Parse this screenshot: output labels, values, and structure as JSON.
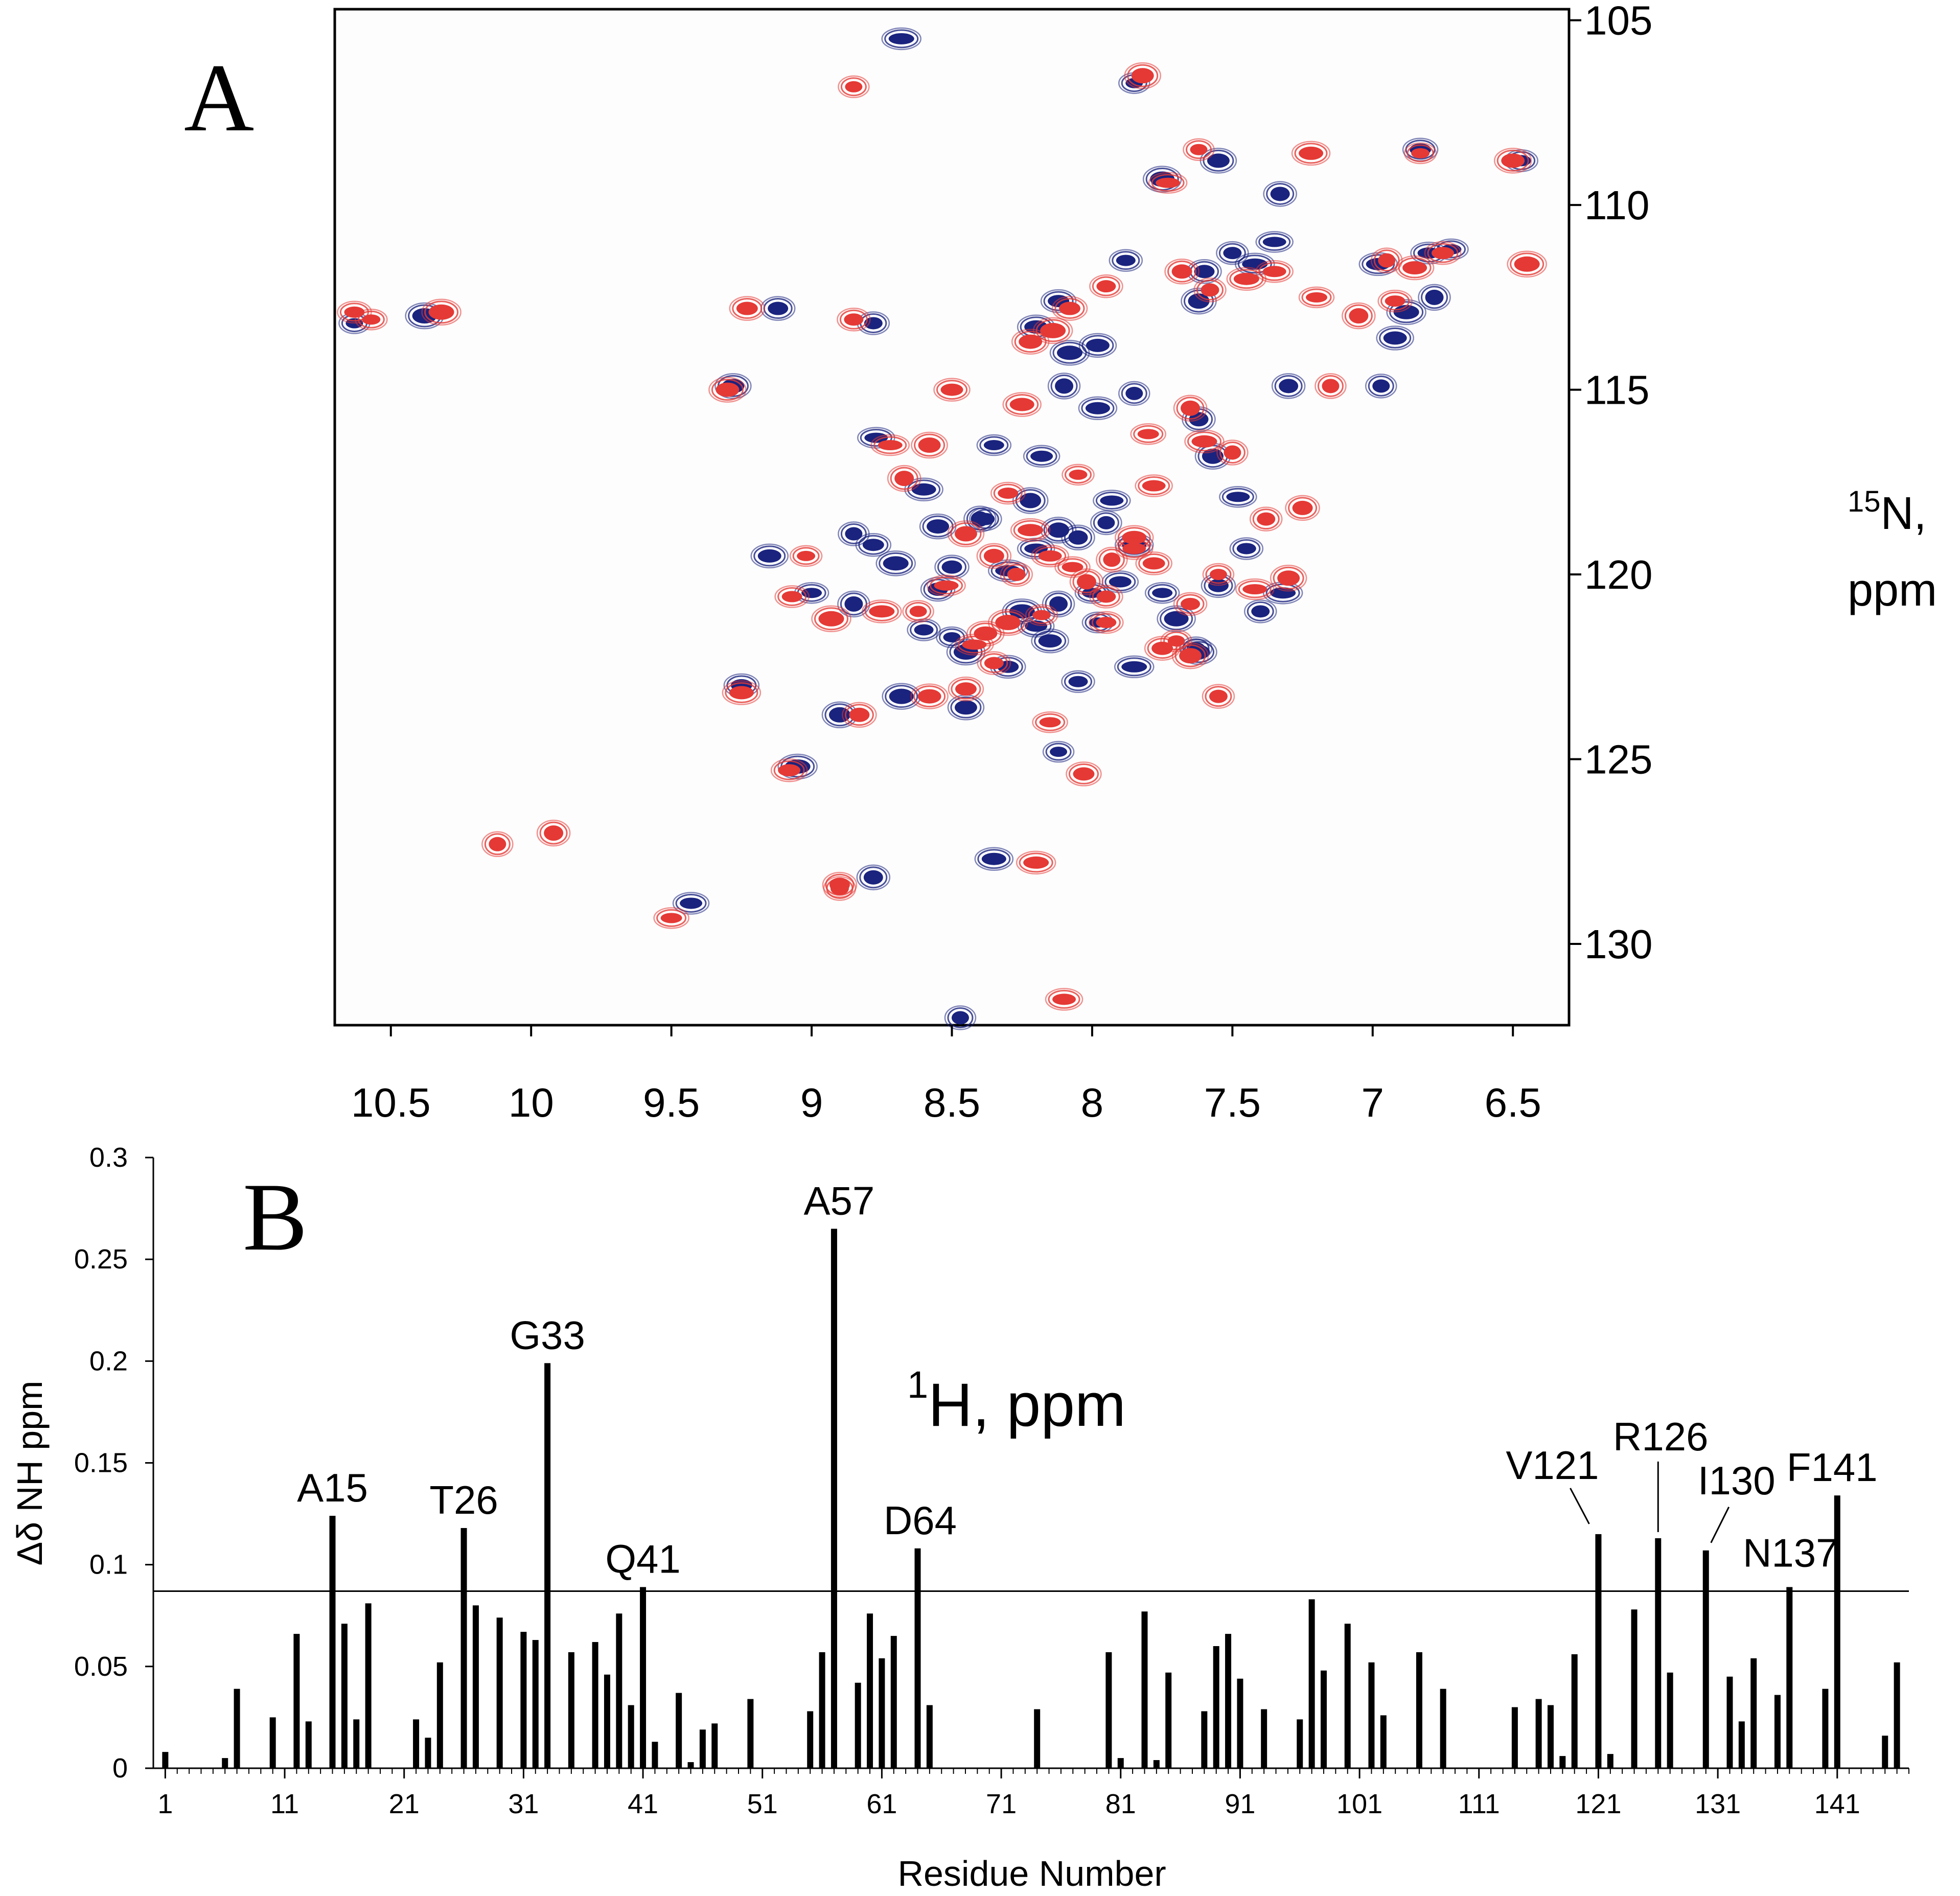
{
  "figure": {
    "panel_a_letter": "A",
    "panel_b_letter": "B"
  },
  "chart_data": [
    {
      "type": "scatter",
      "title": "",
      "xlabel_sup": "1",
      "xlabel": "H, ppm",
      "ylabel_sup": "15",
      "ylabel_line1": "N,",
      "ylabel_line2": "ppm",
      "xlim": [
        10.7,
        6.3
      ],
      "ylim": [
        132.2,
        104.7
      ],
      "x_ticks": [
        10.5,
        10,
        9.5,
        9,
        8.5,
        8,
        7.5,
        7,
        6.5
      ],
      "x_tick_labels": [
        "10.5",
        "10",
        "9.5",
        "9",
        "8.5",
        "8",
        "7.5",
        "7",
        "6.5"
      ],
      "y_ticks": [
        105,
        110,
        115,
        120,
        125,
        130
      ],
      "y_tick_labels": [
        "105",
        "110",
        "115",
        "120",
        "125",
        "130"
      ],
      "colors": {
        "blue": "#1a237e",
        "red": "#e53935"
      },
      "series": [
        {
          "name": "blue",
          "peaks": [
            [
              10.63,
              113.2
            ],
            [
              10.38,
              113.0
            ],
            [
              9.28,
              114.9
            ],
            [
              9.12,
              112.8
            ],
            [
              8.78,
              113.2
            ],
            [
              8.68,
              105.5
            ],
            [
              8.77,
              116.3
            ],
            [
              8.9,
              123.8
            ],
            [
              8.78,
              128.2
            ],
            [
              8.47,
              132.0
            ],
            [
              8.35,
              127.7
            ],
            [
              9.43,
              128.9
            ],
            [
              9.0,
              120.5
            ],
            [
              8.85,
              120.8
            ],
            [
              9.05,
              125.2
            ],
            [
              9.15,
              119.5
            ],
            [
              9.25,
              123.0
            ],
            [
              8.6,
              121.5
            ],
            [
              8.5,
              121.7
            ],
            [
              8.45,
              122.1
            ],
            [
              8.55,
              118.7
            ],
            [
              8.5,
              119.8
            ],
            [
              8.38,
              118.5
            ],
            [
              8.3,
              119.9
            ],
            [
              8.2,
              119.3
            ],
            [
              8.12,
              118.8
            ],
            [
              8.05,
              119.0
            ],
            [
              7.95,
              118.6
            ],
            [
              7.85,
              119.2
            ],
            [
              7.9,
              120.2
            ],
            [
              8.0,
              120.5
            ],
            [
              8.12,
              120.8
            ],
            [
              8.25,
              121.0
            ],
            [
              8.15,
              121.8
            ],
            [
              8.3,
              122.5
            ],
            [
              8.05,
              122.9
            ],
            [
              7.98,
              121.3
            ],
            [
              7.7,
              121.2
            ],
            [
              7.62,
              122.1
            ],
            [
              7.55,
              120.3
            ],
            [
              7.4,
              121.0
            ],
            [
              7.32,
              120.5
            ],
            [
              7.48,
              117.9
            ],
            [
              7.57,
              116.8
            ],
            [
              7.62,
              115.8
            ],
            [
              7.85,
              115.1
            ],
            [
              7.98,
              115.5
            ],
            [
              8.18,
              116.8
            ],
            [
              8.35,
              116.5
            ],
            [
              8.1,
              114.9
            ],
            [
              8.08,
              114.0
            ],
            [
              8.2,
              113.3
            ],
            [
              8.12,
              112.6
            ],
            [
              7.88,
              111.5
            ],
            [
              7.85,
              106.7
            ],
            [
              7.75,
              109.3
            ],
            [
              7.55,
              108.8
            ],
            [
              7.6,
              111.8
            ],
            [
              7.5,
              111.3
            ],
            [
              7.42,
              111.6
            ],
            [
              7.35,
              111.0
            ],
            [
              7.62,
              112.6
            ],
            [
              7.3,
              114.9
            ],
            [
              6.97,
              114.9
            ],
            [
              6.98,
              111.6
            ],
            [
              6.8,
              111.3
            ],
            [
              6.72,
              111.2
            ],
            [
              6.78,
              112.5
            ],
            [
              6.88,
              112.9
            ],
            [
              6.92,
              113.6
            ],
            [
              6.83,
              108.5
            ],
            [
              6.47,
              108.8
            ],
            [
              8.12,
              124.8
            ],
            [
              8.68,
              123.3
            ],
            [
              8.45,
              123.6
            ],
            [
              8.55,
              120.4
            ],
            [
              7.63,
              122.0
            ],
            [
              7.85,
              122.5
            ],
            [
              7.93,
              118.0
            ],
            [
              8.22,
              118.0
            ],
            [
              7.33,
              109.7
            ],
            [
              8.85,
              118.9
            ],
            [
              8.6,
              117.7
            ],
            [
              8.2,
              121.4
            ],
            [
              7.75,
              120.5
            ],
            [
              8.4,
              118.5
            ],
            [
              8.7,
              119.7
            ],
            [
              7.98,
              113.8
            ],
            [
              8.78,
              119.2
            ],
            [
              7.45,
              119.3
            ]
          ]
        },
        {
          "name": "red",
          "peaks": [
            [
              10.63,
              112.9
            ],
            [
              10.57,
              113.1
            ],
            [
              10.32,
              112.9
            ],
            [
              9.3,
              115.0
            ],
            [
              9.23,
              112.8
            ],
            [
              8.85,
              113.1
            ],
            [
              8.85,
              106.8
            ],
            [
              8.72,
              116.5
            ],
            [
              8.58,
              116.5
            ],
            [
              8.83,
              123.8
            ],
            [
              8.9,
              128.5
            ],
            [
              8.2,
              127.8
            ],
            [
              8.1,
              131.5
            ],
            [
              9.5,
              129.3
            ],
            [
              9.92,
              127.0
            ],
            [
              10.12,
              127.3
            ],
            [
              9.25,
              123.2
            ],
            [
              9.08,
              125.3
            ],
            [
              9.07,
              120.6
            ],
            [
              9.02,
              119.5
            ],
            [
              8.93,
              121.2
            ],
            [
              8.58,
              123.3
            ],
            [
              8.45,
              123.1
            ],
            [
              8.35,
              122.4
            ],
            [
              8.62,
              121.0
            ],
            [
              8.52,
              120.3
            ],
            [
              8.45,
              118.9
            ],
            [
              8.35,
              119.5
            ],
            [
              8.27,
              120.0
            ],
            [
              8.22,
              118.8
            ],
            [
              8.15,
              119.5
            ],
            [
              8.07,
              119.8
            ],
            [
              8.02,
              120.2
            ],
            [
              7.93,
              119.6
            ],
            [
              7.85,
              119.0
            ],
            [
              7.78,
              119.7
            ],
            [
              7.95,
              121.3
            ],
            [
              8.18,
              121.1
            ],
            [
              8.3,
              121.3
            ],
            [
              8.38,
              121.6
            ],
            [
              7.75,
              122.0
            ],
            [
              7.65,
              120.8
            ],
            [
              7.55,
              120.0
            ],
            [
              7.42,
              120.4
            ],
            [
              7.3,
              120.1
            ],
            [
              7.25,
              118.2
            ],
            [
              7.38,
              118.5
            ],
            [
              7.6,
              116.4
            ],
            [
              7.78,
              117.6
            ],
            [
              7.8,
              116.2
            ],
            [
              7.65,
              115.5
            ],
            [
              7.5,
              116.7
            ],
            [
              8.25,
              115.4
            ],
            [
              8.5,
              115.0
            ],
            [
              8.3,
              117.8
            ],
            [
              8.05,
              117.3
            ],
            [
              8.14,
              113.4
            ],
            [
              8.22,
              113.7
            ],
            [
              8.08,
              112.8
            ],
            [
              7.95,
              112.2
            ],
            [
              7.62,
              108.5
            ],
            [
              7.73,
              109.4
            ],
            [
              7.82,
              106.5
            ],
            [
              7.68,
              111.8
            ],
            [
              7.58,
              112.3
            ],
            [
              7.45,
              112.0
            ],
            [
              7.35,
              111.8
            ],
            [
              7.2,
              112.5
            ],
            [
              7.05,
              113.0
            ],
            [
              6.95,
              111.5
            ],
            [
              6.85,
              111.7
            ],
            [
              6.75,
              111.3
            ],
            [
              6.92,
              112.6
            ],
            [
              6.83,
              108.6
            ],
            [
              6.45,
              111.6
            ],
            [
              6.5,
              108.8
            ],
            [
              8.03,
              125.4
            ],
            [
              7.95,
              120.6
            ],
            [
              7.7,
              121.8
            ],
            [
              8.42,
              121.9
            ],
            [
              7.65,
              122.2
            ],
            [
              8.9,
              128.4
            ],
            [
              7.55,
              123.3
            ],
            [
              8.75,
              121.0
            ],
            [
              7.85,
              119.3
            ],
            [
              8.15,
              124.0
            ],
            [
              8.67,
              117.4
            ],
            [
              7.15,
              114.9
            ],
            [
              7.22,
              108.6
            ]
          ]
        }
      ]
    },
    {
      "type": "bar",
      "title": "",
      "xlabel": "Residue Number",
      "ylabel": "Δδ NH ppm",
      "ylim": [
        0,
        0.3
      ],
      "xlim": [
        0,
        147
      ],
      "threshold": 0.087,
      "y_ticks": [
        0,
        0.05,
        0.1,
        0.15,
        0.2,
        0.25,
        0.3
      ],
      "y_tick_labels": [
        "0",
        "0.05",
        "0.1",
        "0.15",
        "0.2",
        "0.25",
        "0.3"
      ],
      "x_ticks": [
        1,
        11,
        21,
        31,
        41,
        51,
        61,
        71,
        81,
        91,
        101,
        111,
        121,
        131,
        141
      ],
      "x_tick_labels": [
        "1",
        "11",
        "21",
        "31",
        "41",
        "51",
        "61",
        "71",
        "81",
        "91",
        "101",
        "111",
        "121",
        "131",
        "141"
      ],
      "bars": [
        [
          1,
          0.008
        ],
        [
          6,
          0.005
        ],
        [
          7,
          0.039
        ],
        [
          10,
          0.025
        ],
        [
          12,
          0.066
        ],
        [
          13,
          0.023
        ],
        [
          15,
          0.124
        ],
        [
          16,
          0.071
        ],
        [
          17,
          0.024
        ],
        [
          18,
          0.081
        ],
        [
          22,
          0.024
        ],
        [
          23,
          0.015
        ],
        [
          24,
          0.052
        ],
        [
          26,
          0.118
        ],
        [
          27,
          0.08
        ],
        [
          29,
          0.074
        ],
        [
          31,
          0.067
        ],
        [
          32,
          0.063
        ],
        [
          33,
          0.199
        ],
        [
          35,
          0.057
        ],
        [
          37,
          0.062
        ],
        [
          38,
          0.046
        ],
        [
          39,
          0.076
        ],
        [
          40,
          0.031
        ],
        [
          41,
          0.089
        ],
        [
          42,
          0.013
        ],
        [
          44,
          0.037
        ],
        [
          45,
          0.003
        ],
        [
          46,
          0.019
        ],
        [
          47,
          0.022
        ],
        [
          50,
          0.034
        ],
        [
          55,
          0.028
        ],
        [
          56,
          0.057
        ],
        [
          57,
          0.265
        ],
        [
          59,
          0.042
        ],
        [
          60,
          0.076
        ],
        [
          61,
          0.054
        ],
        [
          62,
          0.065
        ],
        [
          64,
          0.108
        ],
        [
          65,
          0.031
        ],
        [
          74,
          0.029
        ],
        [
          80,
          0.057
        ],
        [
          81,
          0.005
        ],
        [
          83,
          0.077
        ],
        [
          84,
          0.004
        ],
        [
          85,
          0.047
        ],
        [
          88,
          0.028
        ],
        [
          89,
          0.06
        ],
        [
          90,
          0.066
        ],
        [
          91,
          0.044
        ],
        [
          93,
          0.029
        ],
        [
          96,
          0.024
        ],
        [
          97,
          0.083
        ],
        [
          98,
          0.048
        ],
        [
          100,
          0.071
        ],
        [
          102,
          0.052
        ],
        [
          103,
          0.026
        ],
        [
          106,
          0.057
        ],
        [
          108,
          0.039
        ],
        [
          114,
          0.03
        ],
        [
          116,
          0.034
        ],
        [
          117,
          0.031
        ],
        [
          118,
          0.006
        ],
        [
          119,
          0.056
        ],
        [
          121,
          0.115
        ],
        [
          122,
          0.007
        ],
        [
          124,
          0.078
        ],
        [
          126,
          0.113
        ],
        [
          127,
          0.047
        ],
        [
          130,
          0.107
        ],
        [
          132,
          0.045
        ],
        [
          133,
          0.023
        ],
        [
          134,
          0.054
        ],
        [
          136,
          0.036
        ],
        [
          137,
          0.089
        ],
        [
          140,
          0.039
        ],
        [
          141,
          0.134
        ],
        [
          145,
          0.016
        ],
        [
          146,
          0.052
        ]
      ],
      "annotations": [
        {
          "label": "A15",
          "residue": 15,
          "value": 0.124
        },
        {
          "label": "T26",
          "residue": 26,
          "value": 0.118
        },
        {
          "label": "G33",
          "residue": 33,
          "value": 0.199
        },
        {
          "label": "Q41",
          "residue": 41,
          "value": 0.089
        },
        {
          "label": "A57",
          "residue": 57,
          "value": 0.265
        },
        {
          "label": "D64",
          "residue": 64,
          "value": 0.108
        },
        {
          "label": "V121",
          "residue": 121,
          "value": 0.115
        },
        {
          "label": "R126",
          "residue": 126,
          "value": 0.113
        },
        {
          "label": "I130",
          "residue": 130,
          "value": 0.107
        },
        {
          "label": "N137",
          "residue": 137,
          "value": 0.089
        },
        {
          "label": "F141",
          "residue": 141,
          "value": 0.134
        }
      ]
    }
  ]
}
